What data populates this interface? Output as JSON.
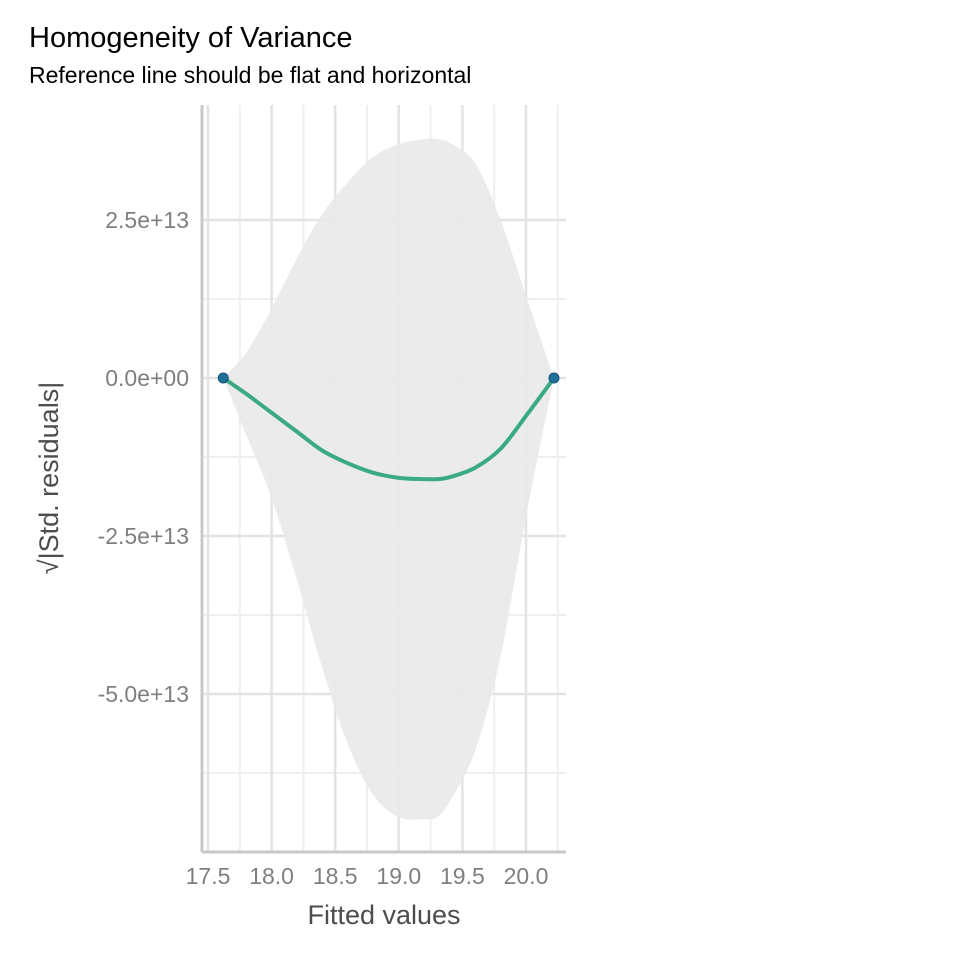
{
  "title": "Homogeneity of Variance",
  "subtitle": "Reference line should be flat and horizontal",
  "colors": {
    "line": "#3aaa85",
    "points": "#1f6f9a",
    "band": "#e9e9e9",
    "grid_major": "#e3e3e3",
    "grid_minor": "#efefef",
    "axis": "#c8c8c8"
  },
  "chart_data": {
    "type": "scatter",
    "xlabel": "Fitted values",
    "ylabel": "√|Std. residuals|",
    "xlim": [
      17.5,
      20.3
    ],
    "ylim": [
      -75000000000000.0,
      40000000000000.0
    ],
    "x_ticks": [
      17.5,
      18.0,
      18.5,
      19.0,
      19.5,
      20.0
    ],
    "x_tick_labels": [
      "17.5",
      "18.0",
      "18.5",
      "19.0",
      "19.5",
      "20.0"
    ],
    "y_ticks": [
      25000000000000.0,
      0,
      -25000000000000.0,
      -50000000000000.0
    ],
    "y_tick_labels": [
      "2.5e+13",
      "0.0e+00",
      "-2.5e+13",
      "-5.0e+13"
    ],
    "grid": true,
    "points": [
      {
        "x": 17.62,
        "y": 0
      },
      {
        "x": 20.22,
        "y": 0
      }
    ],
    "smooth_line": {
      "x": [
        17.62,
        17.8,
        18.0,
        18.2,
        18.4,
        18.6,
        18.8,
        19.0,
        19.2,
        19.3,
        19.4,
        19.6,
        19.8,
        20.0,
        20.22
      ],
      "y": [
        0,
        -2500000000000.0,
        -5500000000000.0,
        -8500000000000.0,
        -11500000000000.0,
        -13500000000000.0,
        -15000000000000.0,
        -15800000000000.0,
        -16000000000000.0,
        -16000000000000.0,
        -15700000000000.0,
        -14200000000000.0,
        -11200000000000.0,
        -6000000000000.0,
        0
      ]
    },
    "confidence_band": {
      "x": [
        17.62,
        17.8,
        18.0,
        18.2,
        18.4,
        18.6,
        18.8,
        19.0,
        19.2,
        19.3,
        19.4,
        19.6,
        19.8,
        20.0,
        20.22
      ],
      "upper": [
        0,
        4000000000000.0,
        11000000000000.0,
        19000000000000.0,
        26000000000000.0,
        31000000000000.0,
        35000000000000.0,
        37000000000000.0,
        37800000000000.0,
        37800000000000.0,
        37200000000000.0,
        34000000000000.0,
        25000000000000.0,
        13000000000000.0,
        0
      ],
      "lower": [
        0,
        -9000000000000.0,
        -19000000000000.0,
        -32000000000000.0,
        -46000000000000.0,
        -58000000000000.0,
        -66000000000000.0,
        -69500000000000.0,
        -69800000000000.0,
        -69500000000000.0,
        -67000000000000.0,
        -59000000000000.0,
        -44000000000000.0,
        -22000000000000.0,
        0
      ]
    }
  }
}
